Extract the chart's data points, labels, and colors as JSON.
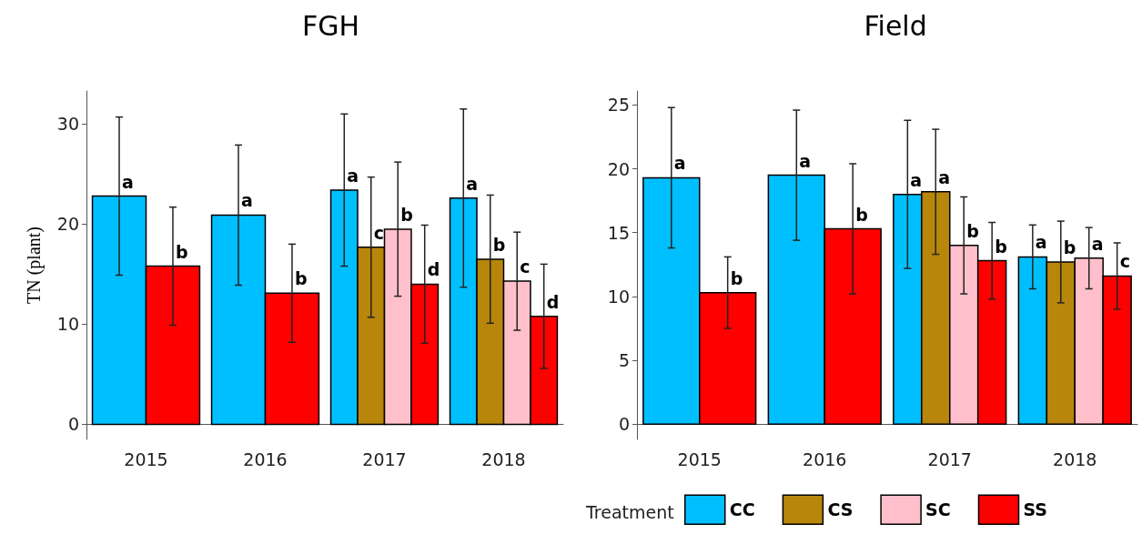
{
  "chart_data": [
    {
      "type": "bar",
      "title": "FGH",
      "ylabel": "TN (plant)",
      "categories": [
        "2015",
        "2016",
        "2017",
        "2018"
      ],
      "series": [
        {
          "color": "#00bfff",
          "values": [
            22.8,
            20.9,
            23.4,
            22.6
          ],
          "errors": [
            7.9,
            7.0,
            7.6,
            8.9
          ]
        },
        {
          "color": "#b8860b",
          "values": [
            null,
            null,
            17.7,
            16.5
          ],
          "errors": [
            null,
            null,
            7.0,
            6.4
          ]
        },
        {
          "color": "#ffc0cb",
          "values": [
            null,
            null,
            19.5,
            14.3
          ],
          "errors": [
            null,
            null,
            6.7,
            4.9
          ]
        },
        {
          "color": "#ff0000",
          "values": [
            15.8,
            13.1,
            14.0,
            10.8
          ],
          "errors": [
            5.9,
            4.9,
            5.9,
            5.2
          ]
        }
      ],
      "ylim": [
        -1.5,
        33.3
      ],
      "yticks": [
        0,
        10,
        20,
        30
      ],
      "grid": false,
      "annotations": [
        "a",
        "b",
        "a",
        "b",
        "a",
        "c",
        "b",
        "d",
        "a",
        "b",
        "c",
        "d"
      ]
    },
    {
      "type": "bar",
      "title": "Field",
      "categories": [
        "2015",
        "2016",
        "2017",
        "2018"
      ],
      "series": [
        {
          "name": "CC",
          "color": "#00bfff",
          "values": [
            19.3,
            19.5,
            18.0,
            13.1
          ],
          "errors": [
            5.5,
            5.1,
            5.8,
            2.5
          ]
        },
        {
          "name": "CS",
          "color": "#b8860b",
          "values": [
            null,
            null,
            18.2,
            12.7
          ],
          "errors": [
            null,
            null,
            4.9,
            3.2
          ]
        },
        {
          "name": "SC",
          "color": "#ffc0cb",
          "values": [
            null,
            null,
            14.0,
            13.0
          ],
          "errors": [
            null,
            null,
            3.8,
            2.4
          ]
        },
        {
          "name": "SS",
          "color": "#ff0000",
          "values": [
            10.3,
            15.3,
            12.8,
            11.6
          ],
          "errors": [
            2.8,
            5.1,
            3.0,
            2.6
          ]
        }
      ],
      "ylim": [
        -1.2,
        26.1
      ],
      "yticks": [
        0,
        5,
        10,
        15,
        20,
        25
      ],
      "grid": false,
      "legend": "bottom",
      "legend_title": "Treatment",
      "annotations": [
        "a",
        "b",
        "a",
        "b",
        "a",
        "a",
        "b",
        "b",
        "a",
        "b",
        "a",
        "c"
      ]
    }
  ]
}
